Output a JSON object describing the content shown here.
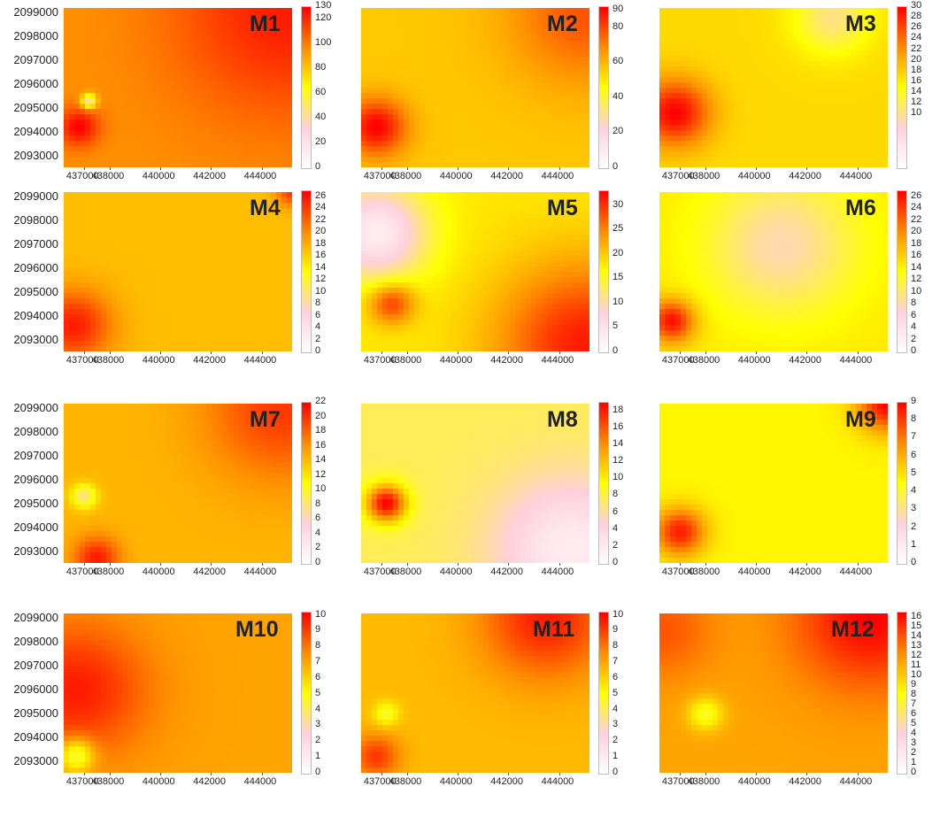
{
  "chart_data": {
    "type": "heatmap",
    "colormap": [
      "#ffffff",
      "#ffd0dc",
      "#ffff00",
      "#ff8c00",
      "#ff0000"
    ],
    "x_ticks": [
      "437000",
      "438000",
      "440000",
      "442000",
      "444000"
    ],
    "y_ticks": [
      "2099000",
      "2098000",
      "2097000",
      "2096000",
      "2095000",
      "2094000",
      "2093000"
    ],
    "xlim": [
      436200,
      445200
    ],
    "ylim": [
      2092500,
      2099200
    ],
    "panels": [
      {
        "title": "M1",
        "colorbar_ticks": [
          "130",
          "120",
          "100",
          "80",
          "60",
          "40",
          "20",
          "0"
        ],
        "vmax": 130,
        "base": 0.74,
        "sources": [
          {
            "x": 436800,
            "y": 2094200,
            "v": 1.0,
            "r": 800
          },
          {
            "x": 445000,
            "y": 2099100,
            "v": 0.95,
            "r": 4500
          },
          {
            "x": 437200,
            "y": 2095300,
            "v": 0.3,
            "r": 300
          }
        ]
      },
      {
        "title": "M2",
        "colorbar_ticks": [
          "90",
          "80",
          "60",
          "40",
          "20",
          "0"
        ],
        "vmax": 92,
        "base": 0.62,
        "sources": [
          {
            "x": 436800,
            "y": 2094200,
            "v": 1.0,
            "r": 1200
          },
          {
            "x": 445000,
            "y": 2099000,
            "v": 0.85,
            "r": 3000
          }
        ]
      },
      {
        "title": "M3",
        "colorbar_ticks": [
          "30",
          "28",
          "26",
          "24",
          "22",
          "20",
          "18",
          "16",
          "14",
          "12",
          "10"
        ],
        "vmax": 30,
        "base": 0.58,
        "sources": [
          {
            "x": 436800,
            "y": 2094800,
            "v": 1.0,
            "r": 1400
          },
          {
            "x": 443000,
            "y": 2098800,
            "v": 0.35,
            "r": 1500
          }
        ]
      },
      {
        "title": "M4",
        "colorbar_ticks": [
          "26",
          "24",
          "22",
          "20",
          "18",
          "16",
          "14",
          "12",
          "10",
          "8",
          "6",
          "4",
          "2",
          "0"
        ],
        "vmax": 27,
        "base": 0.64,
        "sources": [
          {
            "x": 436600,
            "y": 2093600,
            "v": 0.95,
            "r": 1500
          },
          {
            "x": 445200,
            "y": 2099200,
            "v": 0.9,
            "r": 600
          }
        ]
      },
      {
        "title": "M5",
        "colorbar_ticks": [
          "30",
          "25",
          "20",
          "15",
          "10",
          "5",
          "0"
        ],
        "vmax": 33,
        "base": 0.55,
        "sources": [
          {
            "x": 437400,
            "y": 2094600,
            "v": 0.95,
            "r": 900
          },
          {
            "x": 445000,
            "y": 2092800,
            "v": 0.95,
            "r": 3500
          },
          {
            "x": 436800,
            "y": 2097500,
            "v": 0.1,
            "r": 2000
          }
        ]
      },
      {
        "title": "M6",
        "colorbar_ticks": [
          "26",
          "24",
          "22",
          "20",
          "18",
          "16",
          "14",
          "12",
          "10",
          "8",
          "6",
          "4",
          "2",
          "0"
        ],
        "vmax": 27,
        "base": 0.55,
        "sources": [
          {
            "x": 436700,
            "y": 2093800,
            "v": 1.0,
            "r": 900
          },
          {
            "x": 441000,
            "y": 2097000,
            "v": 0.3,
            "r": 3000
          }
        ]
      },
      {
        "title": "M7",
        "colorbar_ticks": [
          "22",
          "20",
          "18",
          "16",
          "14",
          "12",
          "10",
          "8",
          "6",
          "4",
          "2",
          "0"
        ],
        "vmax": 22,
        "base": 0.66,
        "sources": [
          {
            "x": 444800,
            "y": 2099000,
            "v": 0.9,
            "r": 3000
          },
          {
            "x": 437500,
            "y": 2092700,
            "v": 0.95,
            "r": 900
          },
          {
            "x": 437000,
            "y": 2095300,
            "v": 0.35,
            "r": 500
          }
        ]
      },
      {
        "title": "M8",
        "colorbar_ticks": [
          "18",
          "16",
          "14",
          "12",
          "10",
          "8",
          "6",
          "4",
          "2",
          "0"
        ],
        "vmax": 19,
        "base": 0.4,
        "sources": [
          {
            "x": 437200,
            "y": 2095000,
            "v": 1.0,
            "r": 800
          },
          {
            "x": 444500,
            "y": 2093000,
            "v": 0.1,
            "r": 3000
          }
        ]
      },
      {
        "title": "M9",
        "colorbar_ticks": [
          "9",
          "8",
          "7",
          "6",
          "5",
          "4",
          "3",
          "2",
          "1",
          "0"
        ],
        "vmax": 9,
        "base": 0.52,
        "sources": [
          {
            "x": 437000,
            "y": 2093800,
            "v": 0.95,
            "r": 1000
          },
          {
            "x": 445200,
            "y": 2099200,
            "v": 1.0,
            "r": 1200
          }
        ]
      },
      {
        "title": "M10",
        "colorbar_ticks": [
          "10",
          "9",
          "8",
          "7",
          "6",
          "5",
          "4",
          "3",
          "2",
          "1",
          "0"
        ],
        "vmax": 10.2,
        "base": 0.7,
        "sources": [
          {
            "x": 436700,
            "y": 2096000,
            "v": 0.95,
            "r": 2800
          },
          {
            "x": 436700,
            "y": 2093200,
            "v": 0.45,
            "r": 700
          }
        ]
      },
      {
        "title": "M11",
        "colorbar_ticks": [
          "10",
          "9",
          "8",
          "7",
          "6",
          "5",
          "4",
          "3",
          "2",
          "1",
          "0"
        ],
        "vmax": 10.2,
        "base": 0.65,
        "sources": [
          {
            "x": 443500,
            "y": 2099000,
            "v": 0.95,
            "r": 2500
          },
          {
            "x": 436800,
            "y": 2093200,
            "v": 0.9,
            "r": 900
          },
          {
            "x": 437200,
            "y": 2095000,
            "v": 0.45,
            "r": 500
          }
        ]
      },
      {
        "title": "M12",
        "colorbar_ticks": [
          "16",
          "15",
          "14",
          "13",
          "12",
          "11",
          "10",
          "9",
          "8",
          "7",
          "6",
          "5",
          "4",
          "3",
          "2",
          "1",
          "0"
        ],
        "vmax": 16.5,
        "base": 0.7,
        "sources": [
          {
            "x": 444500,
            "y": 2099100,
            "v": 1.0,
            "r": 3000
          },
          {
            "x": 438000,
            "y": 2095000,
            "v": 0.45,
            "r": 700
          },
          {
            "x": 436300,
            "y": 2098500,
            "v": 0.85,
            "r": 2000
          }
        ]
      }
    ]
  }
}
